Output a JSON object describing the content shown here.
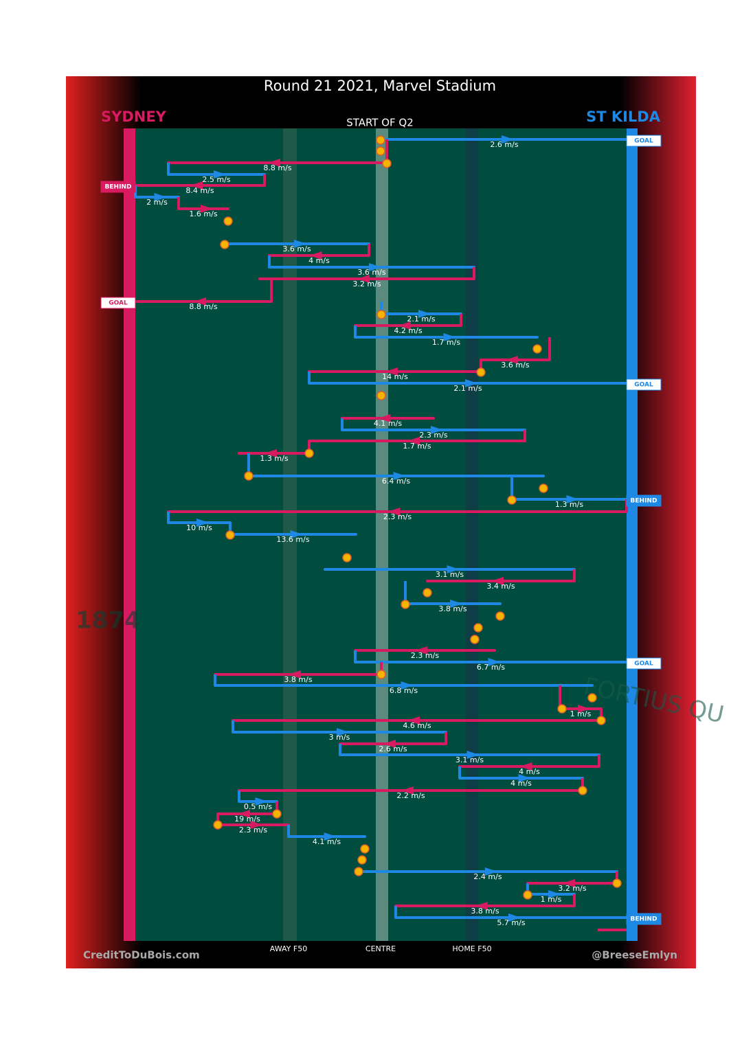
{
  "title": "Round 21 2021, Marvel Stadium",
  "subtitle": "START OF Q2",
  "teams": {
    "left": "SYDNEY",
    "right": "ST KILDA"
  },
  "footer": {
    "left": "CreditToDuBois.com",
    "right": "@BreeseEmlyn"
  },
  "field_labels": [
    "AWAY F50",
    "CENTRE",
    "HOME F50"
  ],
  "watermarks": [
    "1874",
    "FORTIUS QU"
  ],
  "score_markers": [
    "GOAL",
    "BEHIND",
    "GOAL",
    "GOAL",
    "BEHIND",
    "GOAL",
    "BEHIND"
  ],
  "speeds": [
    "2.6 m/s",
    "8.8 m/s",
    "2.5 m/s",
    "8.4 m/s",
    "2 m/s",
    "1.6 m/s",
    "3.6 m/s",
    "4 m/s",
    "3.6 m/s",
    "3.2 m/s",
    "8.8 m/s",
    "2.1 m/s",
    "4.2 m/s",
    "1.7 m/s",
    "3.6 m/s",
    "14 m/s",
    "2.1 m/s",
    "4.1 m/s",
    "2.3 m/s",
    "1.7 m/s",
    "1.3 m/s",
    "6.4 m/s",
    "1.3 m/s",
    "2.3 m/s",
    "10 m/s",
    "13.6 m/s",
    "3.1 m/s",
    "3.4 m/s",
    "3.8 m/s",
    "2.3 m/s",
    "6.7 m/s",
    "3.8 m/s",
    "6.8 m/s",
    "1 m/s",
    "4.6 m/s",
    "3 m/s",
    "2.6 m/s",
    "3.1 m/s",
    "4 m/s",
    "4 m/s",
    "2.2 m/s",
    "0.5 m/s",
    "19 m/s",
    "2.3 m/s",
    "4.1 m/s",
    "2.4 m/s",
    "3.2 m/s",
    "1 m/s",
    "3.8 m/s",
    "5.7 m/s"
  ]
}
